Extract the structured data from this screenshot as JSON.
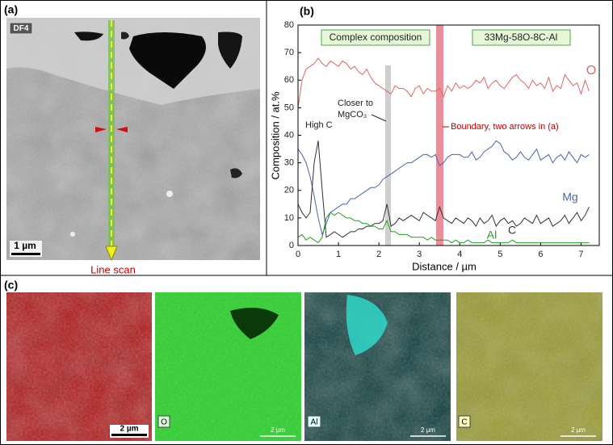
{
  "figure": {
    "panel_labels": [
      "(a)",
      "(b)",
      "(c)"
    ],
    "panel_a": {
      "detector": "DF4",
      "scale": "1 µm",
      "caption": "Line scan"
    },
    "panel_c": {
      "maps": [
        {
          "scale": "2 µm"
        },
        {
          "label": "O",
          "scale": "2 µm"
        },
        {
          "label": "Al",
          "scale": "2 µm"
        },
        {
          "label": "C",
          "scale": "2 µm"
        }
      ]
    }
  },
  "chart_data": {
    "type": "line",
    "xlabel": "Distance / µm",
    "ylabel": "Composition / at.%",
    "annotations": [
      "Complex composition",
      "33Mg-58O-8C-Al",
      "High C",
      "Closer to",
      "MgCO₃",
      "Boundary, two arrows in (a)"
    ],
    "x": [
      0,
      0.1,
      0.2,
      0.3,
      0.4,
      0.5,
      0.6,
      0.7,
      0.8,
      0.9,
      1,
      1.1,
      1.2,
      1.3,
      1.4,
      1.5,
      1.6,
      1.7,
      1.8,
      1.9,
      2,
      2.1,
      2.2,
      2.3,
      2.4,
      2.5,
      2.6,
      2.7,
      2.8,
      2.9,
      3,
      3.1,
      3.2,
      3.3,
      3.4,
      3.5,
      3.6,
      3.7,
      3.8,
      3.9,
      4,
      4.1,
      4.2,
      4.3,
      4.4,
      4.5,
      4.6,
      4.7,
      4.8,
      4.9,
      5,
      5.1,
      5.2,
      5.3,
      5.4,
      5.5,
      5.6,
      5.7,
      5.8,
      5.9,
      6,
      6.1,
      6.2,
      6.3,
      6.4,
      6.5,
      6.6,
      6.7,
      6.8,
      6.9,
      7,
      7.1,
      7.2
    ],
    "series": [
      {
        "name": "O",
        "color": "#e06666",
        "values": [
          50,
          60,
          64,
          65,
          66,
          68,
          66,
          65,
          67,
          66,
          65,
          67,
          66,
          64,
          65,
          63,
          62,
          64,
          61,
          59,
          58,
          57,
          56,
          55,
          58,
          57,
          57,
          56,
          54,
          57,
          58,
          55,
          57,
          56,
          56,
          57,
          54,
          58,
          56,
          59,
          57,
          58,
          57,
          58,
          60,
          59,
          61,
          57,
          59,
          60,
          58,
          57,
          59,
          61,
          62,
          60,
          59,
          57,
          60,
          58,
          59,
          57,
          61,
          56,
          58,
          57,
          62,
          60,
          58,
          59,
          55,
          60,
          56
        ]
      },
      {
        "name": "Mg",
        "color": "#4a63b0",
        "values": [
          35,
          33,
          30,
          25,
          18,
          10,
          4,
          8,
          12,
          13,
          14,
          15,
          15,
          17,
          17,
          18,
          19,
          20,
          21,
          21,
          22,
          24,
          25,
          26,
          27,
          28,
          29,
          30,
          30,
          31,
          32,
          33,
          33,
          32,
          33,
          29,
          30,
          32,
          33,
          33,
          33,
          32,
          32,
          34,
          31,
          32,
          34,
          35,
          36,
          38,
          37,
          34,
          33,
          31,
          32,
          34,
          32,
          31,
          33,
          35,
          31,
          32,
          33,
          30,
          32,
          33,
          31,
          34,
          32,
          30,
          33,
          32,
          33
        ]
      },
      {
        "name": "C",
        "color": "#333333",
        "values": [
          15,
          12,
          10,
          12,
          30,
          38,
          20,
          3,
          4,
          5,
          4,
          3,
          4,
          5,
          5,
          6,
          6,
          7,
          7,
          8,
          8,
          9,
          15,
          7,
          8,
          10,
          9,
          10,
          11,
          10,
          9,
          12,
          11,
          10,
          9,
          14,
          10,
          9,
          8,
          10,
          9,
          8,
          10,
          9,
          7,
          10,
          8,
          9,
          11,
          7,
          9,
          10,
          8,
          9,
          7,
          8,
          10,
          9,
          8,
          11,
          8,
          9,
          10,
          7,
          8,
          9,
          11,
          8,
          10,
          12,
          9,
          11,
          14
        ]
      },
      {
        "name": "Al",
        "color": "#22a022",
        "values": [
          3,
          4,
          2,
          3,
          2,
          1,
          3,
          10,
          12,
          11,
          12,
          11,
          10,
          10,
          9,
          9,
          8,
          8,
          7,
          7,
          6,
          6,
          9,
          5,
          5,
          4,
          4,
          4,
          3,
          3,
          3,
          3,
          2,
          3,
          2,
          2,
          2,
          2,
          1,
          2,
          1,
          1,
          2,
          1,
          1,
          1,
          1,
          2,
          1,
          1,
          1,
          1,
          1,
          2,
          1,
          1,
          1,
          1,
          1,
          1,
          1,
          1,
          1,
          1,
          1,
          1,
          1,
          1,
          1,
          1,
          1,
          1,
          1
        ]
      }
    ],
    "xlim": [
      0,
      7.45
    ],
    "ylim": [
      0,
      80
    ],
    "xticks": [
      0,
      1,
      2,
      3,
      4,
      5,
      6,
      7
    ],
    "yticks": [
      0,
      10,
      20,
      30,
      40,
      50,
      60,
      70,
      80
    ]
  }
}
